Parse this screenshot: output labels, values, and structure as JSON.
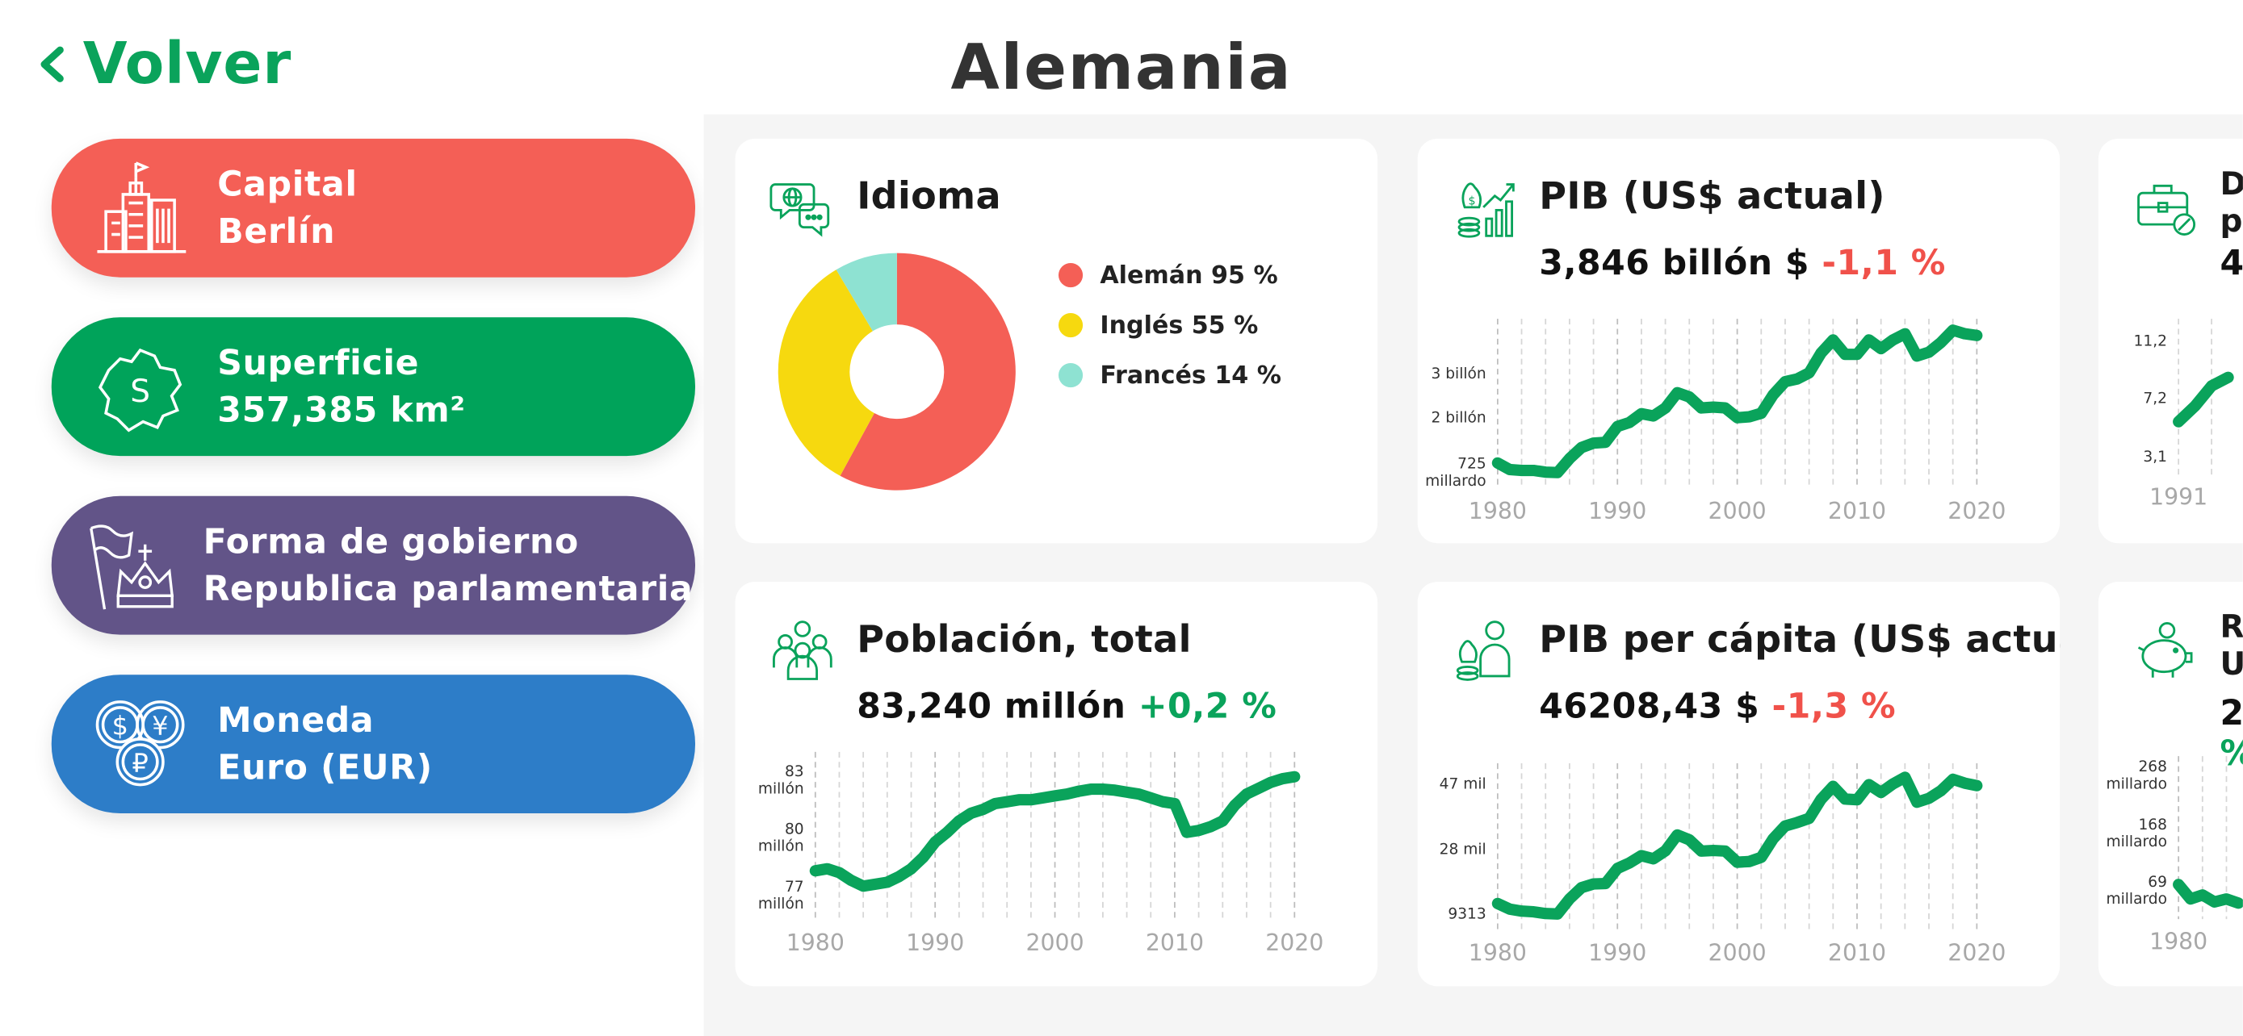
{
  "header": {
    "back_label": "Volver",
    "title": "Alemania"
  },
  "colors": {
    "accent": "#0aa35b",
    "negative": "#f0514a",
    "capital": "#f45f56",
    "area": "#00a35a",
    "government": "#625488",
    "currency": "#2d7dc8"
  },
  "info": [
    {
      "label": "Capital",
      "value": "Berlín",
      "color": "#f45f56",
      "icon": "city-icon"
    },
    {
      "label": "Superficie",
      "value": "357,385 km²",
      "color": "#00a35a",
      "icon": "map-area-icon"
    },
    {
      "label": "Forma de gobierno",
      "value": "Republica parlamentaria",
      "color": "#625488",
      "icon": "crown-flag-icon"
    },
    {
      "label": "Moneda",
      "value": "Euro (EUR)",
      "color": "#2d7dc8",
      "icon": "coins-icon"
    }
  ],
  "cards": {
    "language": {
      "title": "Idioma",
      "icon": "speech-globe-icon",
      "legend": [
        "Alemán 95 %",
        "Inglés 55 %",
        "Francés 14 %"
      ]
    },
    "gdp": {
      "title": "PIB (US$ actual)",
      "value": "3,846 billón $",
      "delta": "-1,1 %",
      "icon": "money-growth-icon"
    },
    "debt": {
      "title_lines": [
        "D",
        "p"
      ],
      "value": "4",
      "icon": "briefcase-icon"
    },
    "population": {
      "title": "Población, total",
      "value": "83,240 millón",
      "delta": "+0,2 %",
      "icon": "people-group-icon"
    },
    "gdp_per_capita": {
      "title": "PIB per cápita (US$ actual)",
      "value": "46208,43 $",
      "delta": "-1,3 %",
      "icon": "person-money-icon"
    },
    "reserves": {
      "title_lines": [
        "R",
        "U"
      ],
      "value_lines": [
        "2",
        "%"
      ],
      "icon": "piggy-bank-icon"
    }
  },
  "chart_data": [
    {
      "type": "pie",
      "categories": [
        "Alemán",
        "Inglés",
        "Francés"
      ],
      "values": [
        95,
        55,
        14
      ],
      "labels": [
        "Alemán 95 %",
        "Inglés 55 %",
        "Francés 14 %"
      ],
      "colors": [
        "#f45f56",
        "#f6d90f",
        "#8ee2d2"
      ],
      "legend": "right"
    },
    {
      "type": "line",
      "x": [
        1980,
        1981,
        1982,
        1983,
        1984,
        1985,
        1986,
        1987,
        1988,
        1989,
        1990,
        1991,
        1992,
        1993,
        1994,
        1995,
        1996,
        1997,
        1998,
        1999,
        2000,
        2001,
        2002,
        2003,
        2004,
        2005,
        2006,
        2007,
        2008,
        2009,
        2010,
        2011,
        2012,
        2013,
        2014,
        2015,
        2016,
        2017,
        2018,
        2019,
        2020
      ],
      "series": [
        {
          "values": [
            0.95,
            0.8,
            0.78,
            0.78,
            0.74,
            0.73,
            1.05,
            1.3,
            1.4,
            1.42,
            1.78,
            1.87,
            2.07,
            2.02,
            2.2,
            2.55,
            2.45,
            2.2,
            2.22,
            2.2,
            1.98,
            2.0,
            2.08,
            2.5,
            2.8,
            2.86,
            3.0,
            3.45,
            3.75,
            3.42,
            3.42,
            3.75,
            3.55,
            3.75,
            3.89,
            3.38,
            3.47,
            3.69,
            3.97,
            3.89,
            3.85
          ]
        }
      ],
      "xticks": [
        1980,
        1990,
        2000,
        2010,
        2020
      ],
      "yticks": [
        {
          "v": 3,
          "label": "3 billón"
        },
        {
          "v": 2,
          "label": "2 billón"
        },
        {
          "v": 0.725,
          "label": [
            "725",
            "millardo"
          ]
        }
      ],
      "ylim": [
        0.62,
        4.1
      ]
    },
    {
      "type": "line",
      "x": [
        1991,
        1992,
        1993,
        1994
      ],
      "series": [
        {
          "values": [
            5.5,
            6.6,
            8.0,
            8.6
          ]
        }
      ],
      "xticks": [
        1991
      ],
      "yticks": [
        {
          "v": 11.2,
          "label": "11,2"
        },
        {
          "v": 7.2,
          "label": "7,2"
        },
        {
          "v": 3.1,
          "label": "3,1"
        }
      ],
      "ylim": [
        2.6,
        12.3
      ]
    },
    {
      "type": "line",
      "x": [
        1980,
        1981,
        1982,
        1983,
        1984,
        1985,
        1986,
        1987,
        1988,
        1989,
        1990,
        1991,
        1992,
        1993,
        1994,
        1995,
        1996,
        1997,
        1998,
        1999,
        2000,
        2001,
        2002,
        2003,
        2004,
        2005,
        2006,
        2007,
        2008,
        2009,
        2010,
        2011,
        2012,
        2013,
        2014,
        2015,
        2016,
        2017,
        2018,
        2019,
        2020
      ],
      "series": [
        {
          "values": [
            78.3,
            78.4,
            78.2,
            77.8,
            77.5,
            77.6,
            77.7,
            78.0,
            78.4,
            79.0,
            79.8,
            80.3,
            80.9,
            81.3,
            81.5,
            81.8,
            81.9,
            82.0,
            82.0,
            82.1,
            82.2,
            82.3,
            82.45,
            82.55,
            82.55,
            82.5,
            82.4,
            82.3,
            82.1,
            81.9,
            81.8,
            80.3,
            80.4,
            80.6,
            80.9,
            81.7,
            82.3,
            82.6,
            82.9,
            83.1,
            83.2
          ]
        }
      ],
      "xticks": [
        1980,
        1990,
        2000,
        2010,
        2020
      ],
      "yticks": [
        {
          "v": 83,
          "label": [
            "83",
            "millón"
          ]
        },
        {
          "v": 80,
          "label": [
            "80",
            "millón"
          ]
        },
        {
          "v": 77,
          "label": [
            "77",
            "millón"
          ]
        }
      ],
      "ylim": [
        76.3,
        84.2
      ]
    },
    {
      "type": "line",
      "x": [
        1980,
        1981,
        1982,
        1983,
        1984,
        1985,
        1986,
        1987,
        1988,
        1989,
        1990,
        1991,
        1992,
        1993,
        1994,
        1995,
        1996,
        1997,
        1998,
        1999,
        2000,
        2001,
        2002,
        2003,
        2004,
        2005,
        2006,
        2007,
        2008,
        2009,
        2010,
        2011,
        2012,
        2013,
        2014,
        2015,
        2016,
        2017,
        2018,
        2019,
        2020
      ],
      "series": [
        {
          "values": [
            12000,
            10400,
            9800,
            9600,
            9100,
            9000,
            13400,
            16600,
            17700,
            17800,
            22200,
            23800,
            25900,
            25000,
            27300,
            31900,
            30500,
            27200,
            27400,
            27200,
            24000,
            24200,
            25400,
            30800,
            34500,
            35500,
            36700,
            42200,
            46000,
            42300,
            42100,
            46500,
            44200,
            46700,
            48600,
            41400,
            42500,
            44700,
            48000,
            46900,
            46200
          ]
        }
      ],
      "xticks": [
        1980,
        1990,
        2000,
        2010,
        2020
      ],
      "yticks": [
        {
          "v": 47000,
          "label": "47 mil"
        },
        {
          "v": 28000,
          "label": "28 mil"
        },
        {
          "v": 9313,
          "label": "9313"
        }
      ],
      "ylim": [
        7500,
        51000
      ]
    },
    {
      "type": "line",
      "x": [
        1980,
        1981,
        1982,
        1983,
        1984,
        1985
      ],
      "series": [
        {
          "values": [
            80,
            55,
            62,
            50,
            55,
            48
          ]
        }
      ],
      "xticks": [
        1980
      ],
      "yticks": [
        {
          "v": 268,
          "label": [
            "268",
            "millardo"
          ]
        },
        {
          "v": 168,
          "label": [
            "168",
            "millardo"
          ]
        },
        {
          "v": 69,
          "label": [
            "69",
            "millardo"
          ]
        }
      ],
      "ylim": [
        40,
        292
      ]
    }
  ]
}
